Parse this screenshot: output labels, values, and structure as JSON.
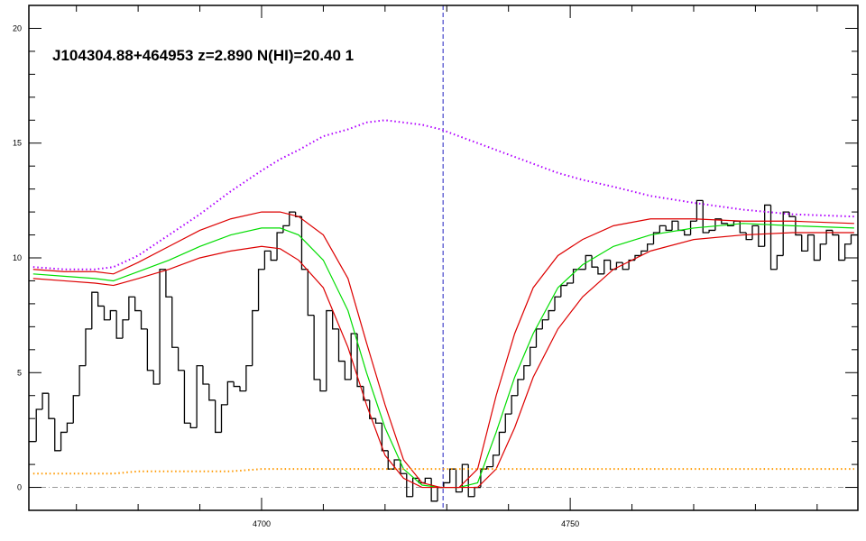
{
  "chart_data": {
    "type": "line",
    "title": "J104304.88+464953 z=2.890 N(HI)=20.40 1",
    "xlim": [
      4662.3,
      4796.6
    ],
    "ylim": [
      -1,
      21
    ],
    "xticks": [
      4700,
      4750
    ],
    "xminorticks": [
      4670,
      4680,
      4690,
      4710,
      4720,
      4730,
      4740,
      4760,
      4770,
      4780,
      4790
    ],
    "yticks": [
      0,
      5,
      10,
      15,
      20
    ],
    "yminorticks": [
      1,
      2,
      3,
      4,
      6,
      7,
      8,
      9,
      11,
      12,
      13,
      14,
      16,
      17,
      18,
      19
    ],
    "hline": 0,
    "hline_color": "#999999",
    "vline": 4729.4,
    "vline_color": "#2020c0",
    "series": [
      {
        "style": "step",
        "color": "#000000",
        "x": [
          4663,
          4664,
          4665,
          4666,
          4667,
          4668,
          4669,
          4670,
          4671,
          4672,
          4673,
          4674,
          4675,
          4676,
          4677,
          4678,
          4679,
          4680,
          4681,
          4682,
          4683,
          4684,
          4685,
          4686,
          4687,
          4688,
          4689,
          4690,
          4691,
          4692,
          4693,
          4694,
          4695,
          4696,
          4697,
          4698,
          4699,
          4700,
          4701,
          4702,
          4703,
          4704,
          4705,
          4706,
          4707,
          4708,
          4709,
          4710,
          4711,
          4712,
          4713,
          4714,
          4715,
          4716,
          4717,
          4718,
          4719,
          4720,
          4721,
          4722,
          4723,
          4724,
          4725,
          4726,
          4727,
          4728,
          4729,
          4730,
          4731,
          4732,
          4733,
          4734,
          4735,
          4736,
          4737,
          4738,
          4739,
          4740,
          4741,
          4742,
          4743,
          4744,
          4745,
          4746,
          4747,
          4748,
          4749,
          4750,
          4751,
          4752,
          4753,
          4754,
          4755,
          4756,
          4757,
          4758,
          4759,
          4760,
          4761,
          4762,
          4763,
          4764,
          4765,
          4766,
          4767,
          4768,
          4769,
          4770,
          4771,
          4772,
          4773,
          4774,
          4775,
          4776,
          4777,
          4778,
          4779,
          4780,
          4781,
          4782,
          4783,
          4784,
          4785,
          4786,
          4787,
          4788,
          4789,
          4790,
          4791,
          4792,
          4793,
          4794,
          4795,
          4796
        ],
        "values": [
          2.0,
          3.4,
          4.1,
          3.0,
          1.6,
          2.4,
          2.8,
          4.0,
          5.3,
          6.9,
          8.5,
          7.9,
          7.3,
          7.7,
          6.5,
          7.3,
          8.3,
          7.7,
          6.9,
          5.1,
          4.5,
          9.5,
          8.3,
          6.1,
          5.1,
          2.8,
          2.6,
          5.3,
          4.5,
          3.8,
          2.4,
          3.6,
          4.6,
          4.4,
          4.2,
          5.3,
          7.7,
          9.5,
          10.3,
          9.9,
          11.1,
          11.4,
          12.0,
          11.8,
          9.5,
          7.5,
          4.7,
          4.2,
          7.7,
          6.9,
          5.5,
          4.7,
          6.7,
          4.4,
          3.8,
          3.0,
          2.8,
          1.6,
          0.8,
          1.2,
          0.6,
          -0.4,
          0.4,
          0.2,
          0.4,
          -0.6,
          0.0,
          0.2,
          0.8,
          -0.2,
          1.0,
          -0.4,
          0.0,
          0.8,
          0.9,
          1.4,
          2.4,
          3.2,
          4.0,
          4.7,
          5.3,
          6.1,
          6.9,
          7.3,
          7.7,
          8.3,
          8.8,
          8.9,
          9.5,
          9.5,
          10.1,
          9.6,
          9.3,
          9.9,
          9.5,
          9.8,
          9.5,
          9.9,
          10.1,
          10.3,
          10.6,
          11.1,
          11.4,
          11.2,
          11.6,
          11.2,
          11.0,
          11.6,
          12.5,
          11.1,
          11.2,
          11.7,
          11.5,
          11.4,
          11.6,
          11.1,
          10.8,
          11.4,
          10.5,
          12.3,
          9.5,
          10.1,
          12.0,
          11.8,
          11.0,
          10.3,
          11.0,
          9.9,
          10.6,
          11.2,
          11.0,
          9.9,
          10.6,
          11.0
        ]
      },
      {
        "style": "dotted",
        "color": "#b000ff",
        "x": [
          4663,
          4668,
          4673,
          4676,
          4680,
          4685,
          4690,
          4695,
          4700,
          4703,
          4706,
          4710,
          4714,
          4717,
          4720,
          4723,
          4726,
          4729,
          4732,
          4735,
          4738,
          4741,
          4744,
          4748,
          4752,
          4757,
          4763,
          4770,
          4778,
          4786,
          4796
        ],
        "values": [
          9.6,
          9.5,
          9.5,
          9.6,
          10.1,
          11.0,
          11.9,
          12.9,
          13.8,
          14.3,
          14.7,
          15.3,
          15.6,
          15.9,
          16.0,
          15.9,
          15.8,
          15.6,
          15.3,
          15.0,
          14.7,
          14.4,
          14.1,
          13.7,
          13.4,
          13.1,
          12.7,
          12.4,
          12.1,
          11.9,
          11.8
        ]
      },
      {
        "style": "solid",
        "color": "#00dd00",
        "x": [
          4663,
          4668,
          4673,
          4676,
          4680,
          4685,
          4690,
          4695,
          4700,
          4703,
          4706,
          4710,
          4714,
          4717,
          4720,
          4723,
          4726,
          4729,
          4732,
          4735,
          4738,
          4741,
          4744,
          4748,
          4752,
          4757,
          4763,
          4770,
          4778,
          4786,
          4796
        ],
        "values": [
          9.3,
          9.2,
          9.1,
          9.0,
          9.4,
          9.9,
          10.5,
          11.0,
          11.3,
          11.3,
          11.0,
          9.9,
          7.7,
          5.0,
          2.6,
          0.8,
          0.1,
          0.0,
          0.0,
          0.2,
          2.4,
          4.8,
          6.7,
          8.7,
          9.7,
          10.5,
          11.0,
          11.3,
          11.5,
          11.4,
          11.3
        ]
      },
      {
        "style": "solid",
        "color": "#dd0000",
        "x": [
          4663,
          4668,
          4673,
          4676,
          4680,
          4685,
          4690,
          4695,
          4700,
          4703,
          4706,
          4710,
          4714,
          4717,
          4720,
          4723,
          4726,
          4729,
          4732,
          4735,
          4738,
          4741,
          4744,
          4748,
          4752,
          4757,
          4763,
          4770,
          4778,
          4786,
          4796
        ],
        "values": [
          9.5,
          9.4,
          9.4,
          9.3,
          9.8,
          10.5,
          11.2,
          11.7,
          12.0,
          12.0,
          11.8,
          11.0,
          9.1,
          6.3,
          3.6,
          1.2,
          0.2,
          0.0,
          0.0,
          0.8,
          4.0,
          6.7,
          8.7,
          10.1,
          10.8,
          11.4,
          11.7,
          11.7,
          11.6,
          11.6,
          11.5
        ]
      },
      {
        "style": "solid",
        "color": "#dd0000",
        "x": [
          4663,
          4668,
          4673,
          4676,
          4680,
          4685,
          4690,
          4695,
          4700,
          4703,
          4706,
          4710,
          4714,
          4717,
          4720,
          4723,
          4726,
          4729,
          4732,
          4735,
          4738,
          4741,
          4744,
          4748,
          4752,
          4757,
          4763,
          4770,
          4778,
          4786,
          4796
        ],
        "values": [
          9.1,
          9.0,
          8.9,
          8.8,
          9.1,
          9.5,
          10.0,
          10.3,
          10.5,
          10.4,
          9.9,
          8.7,
          6.1,
          3.6,
          1.4,
          0.4,
          0.0,
          0.0,
          0.0,
          0.0,
          0.8,
          2.6,
          4.8,
          6.9,
          8.3,
          9.5,
          10.3,
          10.8,
          11.0,
          11.1,
          11.1
        ]
      },
      {
        "style": "dotted",
        "color": "#ff9900",
        "x": [
          4663,
          4668,
          4673,
          4676,
          4680,
          4685,
          4690,
          4695,
          4700,
          4703,
          4706,
          4710,
          4714,
          4717,
          4720,
          4723,
          4726,
          4729,
          4732,
          4735,
          4738,
          4741,
          4744,
          4748,
          4752,
          4757,
          4763,
          4770,
          4778,
          4786,
          4796
        ],
        "values": [
          0.6,
          0.6,
          0.6,
          0.6,
          0.7,
          0.7,
          0.7,
          0.7,
          0.8,
          0.8,
          0.8,
          0.8,
          0.8,
          0.8,
          0.8,
          0.8,
          0.8,
          0.8,
          0.8,
          0.8,
          0.8,
          0.8,
          0.8,
          0.8,
          0.8,
          0.8,
          0.8,
          0.8,
          0.8,
          0.8,
          0.8
        ]
      }
    ]
  }
}
